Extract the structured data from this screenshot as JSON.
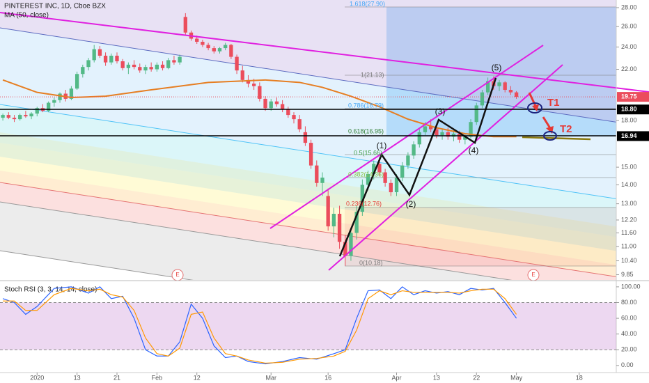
{
  "title": "PINTEREST INC, 1D, Cboe BZX",
  "chart_data": [
    {
      "type": "candlestick",
      "title": "PINTEREST INC, 1D, Cboe BZX",
      "legend": "MA (50, close)",
      "up_color": "#53b987",
      "down_color": "#eb4d5c",
      "log_scale": true,
      "xlim": [
        -0.5,
        107.5
      ],
      "xticks": [
        {
          "value": 6,
          "label": "2020"
        },
        {
          "value": 13,
          "label": "13"
        },
        {
          "value": 20,
          "label": "21"
        },
        {
          "value": 27,
          "label": "Feb"
        },
        {
          "value": 34,
          "label": "12"
        },
        {
          "value": 47,
          "label": "Mar"
        },
        {
          "value": 57,
          "label": "16"
        },
        {
          "value": 69,
          "label": "Apr"
        },
        {
          "value": 76,
          "label": "13"
        },
        {
          "value": 83,
          "label": "22"
        },
        {
          "value": 90,
          "label": "May"
        },
        {
          "value": 101,
          "label": "18"
        }
      ],
      "ylim": [
        9.65,
        28.85
      ],
      "yticks": [
        {
          "value": 28,
          "label": "28.00"
        },
        {
          "value": 26,
          "label": "26.00"
        },
        {
          "value": 24,
          "label": "24.00"
        },
        {
          "value": 22,
          "label": "22.00"
        },
        {
          "value": 18,
          "label": "18.00"
        },
        {
          "value": 15,
          "label": "15.00"
        },
        {
          "value": 14,
          "label": "14.00"
        },
        {
          "value": 13,
          "label": "13.00"
        },
        {
          "value": 12.2,
          "label": "12.20"
        },
        {
          "value": 11.6,
          "label": "11.60"
        },
        {
          "value": 11,
          "label": "11.00"
        },
        {
          "value": 10.4,
          "label": "10.40"
        },
        {
          "value": 9.85,
          "label": "9.85"
        }
      ],
      "price_labels": [
        {
          "value": 19.75,
          "label": "19.75",
          "color": "#eb4d5c"
        },
        {
          "value": 18.8,
          "label": "18.80",
          "color": "#000000"
        },
        {
          "value": 16.94,
          "label": "16.94",
          "color": "#000000"
        }
      ],
      "candles": [
        [
          18.2,
          18.5,
          18.0,
          18.4
        ],
        [
          18.4,
          18.6,
          18.1,
          18.2
        ],
        [
          18.2,
          18.4,
          17.9,
          18.1
        ],
        [
          18.1,
          18.5,
          18.0,
          18.4
        ],
        [
          18.4,
          18.7,
          18.2,
          18.3
        ],
        [
          18.3,
          18.6,
          18.1,
          18.5
        ],
        [
          18.5,
          19.0,
          18.3,
          18.9
        ],
        [
          18.9,
          19.2,
          18.6,
          18.7
        ],
        [
          18.7,
          19.4,
          18.6,
          19.3
        ],
        [
          19.3,
          19.7,
          19.0,
          19.5
        ],
        [
          19.5,
          20.1,
          19.3,
          20.0
        ],
        [
          20.0,
          20.3,
          19.4,
          19.6
        ],
        [
          19.6,
          20.6,
          19.5,
          20.4
        ],
        [
          20.4,
          21.8,
          20.3,
          21.6
        ],
        [
          21.6,
          22.4,
          21.3,
          22.2
        ],
        [
          22.2,
          23.0,
          21.9,
          22.8
        ],
        [
          22.8,
          24.2,
          22.6,
          23.8
        ],
        [
          23.8,
          24.1,
          23.0,
          23.2
        ],
        [
          23.2,
          23.5,
          22.3,
          22.6
        ],
        [
          22.6,
          23.4,
          22.4,
          23.2
        ],
        [
          23.2,
          23.5,
          22.5,
          22.7
        ],
        [
          22.7,
          22.9,
          21.9,
          22.1
        ],
        [
          22.1,
          22.6,
          21.6,
          22.4
        ],
        [
          22.4,
          22.8,
          22.0,
          22.2
        ],
        [
          22.2,
          22.5,
          21.7,
          21.9
        ],
        [
          21.9,
          22.4,
          21.6,
          22.2
        ],
        [
          22.2,
          22.6,
          21.8,
          22.0
        ],
        [
          22.0,
          22.6,
          21.8,
          22.4
        ],
        [
          22.4,
          22.7,
          21.9,
          22.1
        ],
        [
          22.1,
          23.0,
          22.0,
          22.8
        ],
        [
          22.8,
          23.2,
          22.4,
          22.6
        ],
        [
          22.6,
          23.3,
          22.4,
          23.1
        ],
        [
          27.0,
          27.4,
          25.2,
          25.4
        ],
        [
          25.4,
          25.6,
          24.6,
          24.8
        ],
        [
          24.8,
          25.1,
          24.3,
          24.5
        ],
        [
          24.5,
          24.7,
          24.0,
          24.2
        ],
        [
          24.2,
          24.4,
          23.7,
          23.9
        ],
        [
          23.9,
          24.1,
          23.4,
          23.6
        ],
        [
          23.6,
          24.0,
          23.4,
          23.9
        ],
        [
          23.9,
          24.4,
          23.7,
          24.2
        ],
        [
          24.2,
          24.3,
          22.9,
          23.1
        ],
        [
          23.1,
          23.3,
          21.6,
          21.9
        ],
        [
          21.9,
          22.3,
          20.9,
          21.1
        ],
        [
          21.1,
          21.5,
          20.5,
          20.8
        ],
        [
          20.8,
          21.2,
          20.3,
          20.6
        ],
        [
          20.6,
          20.9,
          19.4,
          19.6
        ],
        [
          19.6,
          19.8,
          18.7,
          18.9
        ],
        [
          18.9,
          19.6,
          18.7,
          19.4
        ],
        [
          19.4,
          19.7,
          19.0,
          19.2
        ],
        [
          19.2,
          19.5,
          18.6,
          18.8
        ],
        [
          18.8,
          19.0,
          18.2,
          18.4
        ],
        [
          18.4,
          18.6,
          17.8,
          18.1
        ],
        [
          18.1,
          18.4,
          17.2,
          17.4
        ],
        [
          17.2,
          17.6,
          16.3,
          16.5
        ],
        [
          16.5,
          16.7,
          14.9,
          15.1
        ],
        [
          15.1,
          15.4,
          13.9,
          14.1
        ],
        [
          14.1,
          14.7,
          13.4,
          14.4
        ],
        [
          13.4,
          13.8,
          11.7,
          11.9
        ],
        [
          11.9,
          12.8,
          11.4,
          12.5
        ],
        [
          12.5,
          12.9,
          10.9,
          11.2
        ],
        [
          11.2,
          11.5,
          10.2,
          10.6
        ],
        [
          10.6,
          11.8,
          10.4,
          11.6
        ],
        [
          11.6,
          12.9,
          11.3,
          12.6
        ],
        [
          12.6,
          14.3,
          12.4,
          14.0
        ],
        [
          14.0,
          14.8,
          13.7,
          14.6
        ],
        [
          14.6,
          15.4,
          14.3,
          15.2
        ],
        [
          15.2,
          15.4,
          14.5,
          14.7
        ],
        [
          14.7,
          14.9,
          13.9,
          14.1
        ],
        [
          14.1,
          14.3,
          13.4,
          13.6
        ],
        [
          13.6,
          14.6,
          13.4,
          14.4
        ],
        [
          14.4,
          15.3,
          14.2,
          15.1
        ],
        [
          15.1,
          15.9,
          14.9,
          15.7
        ],
        [
          15.7,
          16.6,
          15.5,
          16.4
        ],
        [
          16.4,
          17.4,
          16.2,
          17.2
        ],
        [
          17.2,
          17.9,
          17.0,
          17.6
        ],
        [
          17.6,
          18.1,
          17.2,
          17.4
        ],
        [
          17.4,
          17.7,
          16.8,
          17.0
        ],
        [
          17.0,
          17.4,
          16.7,
          17.2
        ],
        [
          17.2,
          17.5,
          16.7,
          16.9
        ],
        [
          16.9,
          17.4,
          16.6,
          17.1
        ],
        [
          17.1,
          17.3,
          16.5,
          16.7
        ],
        [
          16.7,
          17.1,
          16.4,
          16.9
        ],
        [
          16.9,
          18.1,
          16.8,
          17.9
        ],
        [
          17.9,
          19.3,
          17.7,
          19.1
        ],
        [
          19.1,
          20.3,
          18.9,
          20.1
        ],
        [
          20.1,
          21.3,
          19.9,
          21.0
        ],
        [
          21.0,
          21.4,
          20.3,
          20.6
        ],
        [
          20.6,
          21.1,
          20.2,
          20.9
        ],
        [
          20.9,
          21.0,
          20.1,
          20.3
        ],
        [
          20.3,
          20.6,
          19.9,
          20.1
        ],
        [
          20.1,
          20.2,
          19.6,
          19.75
        ]
      ],
      "ma": {
        "name": "MA (50, close)",
        "color": "#e67e22",
        "x": [
          0,
          6,
          12,
          18,
          26,
          36,
          46,
          52,
          56,
          61,
          66,
          71,
          76,
          81,
          86,
          90
        ],
        "values": [
          21.1,
          20.1,
          19.7,
          19.8,
          20.3,
          20.9,
          21.1,
          20.9,
          20.5,
          19.8,
          19.0,
          18.1,
          17.5,
          17.1,
          16.9,
          16.9
        ]
      }
    },
    {
      "type": "line",
      "title": "Stoch RSI (3, 3, 14, 14, close)",
      "xlim": [
        -0.5,
        107.5
      ],
      "ylim": [
        -9,
        107
      ],
      "yticks": [
        {
          "value": 100,
          "label": "100.00"
        },
        {
          "value": 80,
          "label": "80.00"
        },
        {
          "value": 60,
          "label": "60.00"
        },
        {
          "value": 40,
          "label": "40.00"
        },
        {
          "value": 20,
          "label": "20.00"
        },
        {
          "value": 0,
          "label": "0.00"
        }
      ],
      "band": [
        20,
        80
      ],
      "x": [
        0,
        2,
        4,
        6,
        9,
        12,
        15,
        17,
        19,
        21,
        23,
        25,
        27,
        29,
        31,
        33,
        35,
        37,
        39,
        41,
        43,
        46,
        49,
        52,
        55,
        58,
        60,
        62,
        64,
        66,
        68,
        70,
        72,
        74,
        76,
        78,
        80,
        82,
        84,
        86,
        88,
        90
      ],
      "series": [
        {
          "color": "#2962ff",
          "values": [
            85,
            80,
            65,
            75,
            98,
            100,
            92,
            100,
            85,
            88,
            60,
            20,
            12,
            12,
            30,
            78,
            60,
            25,
            10,
            12,
            5,
            2,
            5,
            10,
            8,
            15,
            20,
            60,
            95,
            96,
            85,
            100,
            90,
            95,
            92,
            94,
            90,
            98,
            96,
            98,
            80,
            60
          ]
        },
        {
          "color": "#ff9800",
          "values": [
            82,
            82,
            70,
            70,
            90,
            98,
            95,
            97,
            90,
            87,
            70,
            35,
            15,
            12,
            22,
            65,
            68,
            35,
            15,
            12,
            7,
            3,
            4,
            8,
            9,
            12,
            18,
            45,
            85,
            95,
            90,
            95,
            93,
            93,
            93,
            93,
            92,
            95,
            97,
            97,
            85,
            65
          ]
        }
      ]
    }
  ],
  "annotations": {
    "fib": [
      "1.618(27.90)",
      "1(21.13)",
      "0.786(18.79)",
      "0.618(16.95)",
      "0.5(15.66)",
      "0.382(14.36)",
      "0.236(12.76)",
      "0(10.18)"
    ],
    "waves": [
      "(1)",
      "(2)",
      "(3)",
      "(4)",
      "(5)"
    ],
    "targets": [
      "T1",
      "T2"
    ],
    "earnings": "E"
  }
}
